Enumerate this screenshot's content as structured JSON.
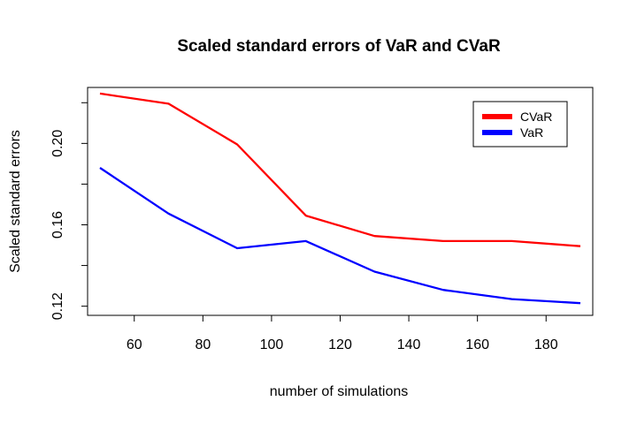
{
  "chart_data": {
    "type": "line",
    "title": "Scaled standard errors of VaR and CVaR",
    "xlabel": "number of simulations",
    "ylabel": "Scaled standard errors",
    "x": [
      50,
      70,
      90,
      110,
      130,
      150,
      170,
      190
    ],
    "xlim": [
      46.4,
      193.6
    ],
    "ylim": [
      0.1155,
      0.2275
    ],
    "xticks": [
      60,
      80,
      100,
      120,
      140,
      160,
      180
    ],
    "yticks": [
      0.12,
      0.14,
      0.16,
      0.18,
      0.2,
      0.22
    ],
    "yticklabels": [
      "0.12",
      "",
      "0.16",
      "",
      "0.20",
      ""
    ],
    "grid": false,
    "legend_position": "top-right",
    "series": [
      {
        "name": "CVaR",
        "color": "#ff0000",
        "values": [
          0.2245,
          0.2195,
          0.1995,
          0.1645,
          0.1545,
          0.152,
          0.152,
          0.1495
        ]
      },
      {
        "name": "VaR",
        "color": "#0000ff",
        "values": [
          0.188,
          0.1655,
          0.1485,
          0.152,
          0.137,
          0.128,
          0.1235,
          0.1215
        ]
      }
    ]
  }
}
